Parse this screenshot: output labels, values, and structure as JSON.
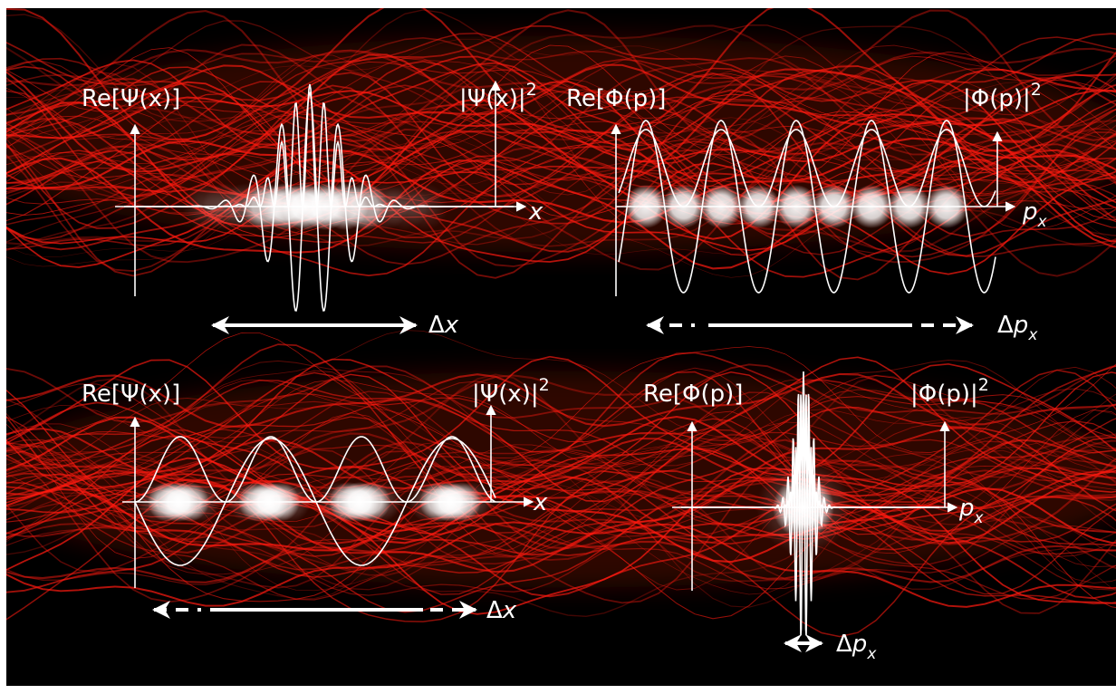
{
  "panels": {
    "top_left": {
      "real_label": "Re[Ψ(x)]",
      "prob_label": "|Ψ(x)|2",
      "axis_label": "x",
      "spread_label": "Δx"
    },
    "top_right": {
      "real_label": "Re[Φ(p)]",
      "prob_label": "|Φ(p)|2",
      "axis_label": "px",
      "spread_label": "Δpx"
    },
    "bottom_left": {
      "real_label": "Re[Ψ(x)]",
      "prob_label": "|Ψ(x)|2",
      "axis_label": "x",
      "spread_label": "Δx"
    },
    "bottom_right": {
      "real_label": "Re[Φ(p)]",
      "prob_label": "|Φ(p)|2",
      "axis_label": "px",
      "spread_label": "Δpx"
    }
  },
  "colors": {
    "background": "#000000",
    "smoke": "#ff1a10",
    "curves": "#ffffff"
  }
}
